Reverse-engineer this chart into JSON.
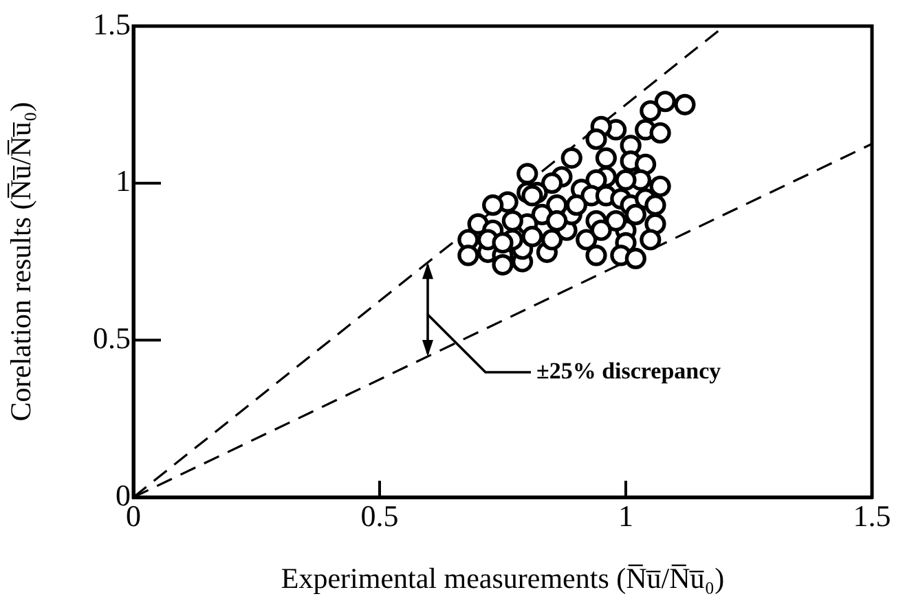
{
  "chart_data": {
    "type": "scatter",
    "xlabel": "Experimental measurements (N̅u̅/N̅u̅₀)",
    "ylabel": "Corelation results (N̅u̅/N̅u̅₀)",
    "xlim": [
      0,
      1.5
    ],
    "ylim": [
      0,
      1.5
    ],
    "xticks": [
      0,
      0.5,
      1,
      1.5
    ],
    "yticks": [
      0,
      0.5,
      1,
      1.5
    ],
    "grid": false,
    "legend": false,
    "series": [
      {
        "color": "#000000",
        "marker": "circle",
        "x": [
          1.12,
          1.08,
          1.05,
          1.04,
          1.07,
          0.98,
          0.95,
          0.94,
          1.01,
          0.96,
          0.89,
          0.87,
          0.8,
          1.01,
          1.04,
          1.03,
          1.07,
          1.0,
          0.96,
          0.94,
          0.91,
          0.85,
          0.82,
          0.8,
          0.76,
          0.73,
          0.7,
          0.68,
          0.68,
          0.72,
          0.75,
          0.79,
          0.75,
          0.79,
          0.84,
          0.85,
          0.88,
          0.92,
          0.94,
          0.89,
          0.86,
          0.83,
          0.8,
          0.77,
          0.73,
          0.72,
          0.77,
          0.81,
          0.93,
          0.96,
          0.99,
          1.01,
          1.04,
          1.06,
          1.06,
          1.05,
          1.02,
          1.0,
          0.98,
          1.0,
          0.99,
          1.02,
          0.95,
          0.9,
          0.86,
          0.75,
          0.81,
          0.94
        ],
        "values": [
          1.25,
          1.26,
          1.23,
          1.17,
          1.16,
          1.17,
          1.18,
          1.14,
          1.12,
          1.08,
          1.08,
          1.02,
          1.03,
          1.07,
          1.06,
          1.01,
          0.99,
          1.01,
          1.02,
          1.01,
          0.98,
          1.0,
          0.97,
          0.97,
          0.94,
          0.93,
          0.87,
          0.82,
          0.77,
          0.78,
          0.77,
          0.75,
          0.74,
          0.79,
          0.78,
          0.82,
          0.85,
          0.82,
          0.88,
          0.9,
          0.93,
          0.9,
          0.87,
          0.88,
          0.85,
          0.82,
          0.82,
          0.83,
          0.96,
          0.96,
          0.95,
          0.93,
          0.95,
          0.93,
          0.87,
          0.82,
          0.9,
          0.85,
          0.88,
          0.81,
          0.77,
          0.76,
          0.85,
          0.93,
          0.88,
          0.81,
          0.96,
          0.77
        ]
      },
      {
        "type": "line",
        "color": "#000000",
        "line_style": "dashed",
        "x": [
          0,
          1.5
        ],
        "values": [
          0,
          1.125
        ]
      },
      {
        "type": "line",
        "color": "#000000",
        "line_style": "dashed",
        "x": [
          0,
          1.2
        ],
        "values": [
          0,
          1.5
        ]
      }
    ],
    "annotations": [
      "±25% discrepancy"
    ]
  }
}
